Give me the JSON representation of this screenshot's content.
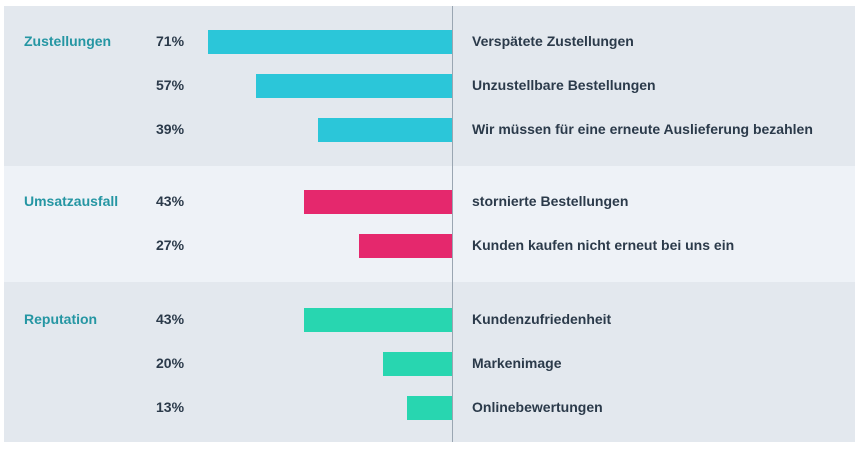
{
  "chart_data": {
    "type": "bar",
    "orientation": "horizontal",
    "groups": [
      {
        "name": "Zustellungen",
        "color": "#2bc6d9",
        "band_color": "#e3e8ee",
        "items": [
          {
            "label": "Verspätete Zustellungen",
            "value": 71,
            "value_text": "71%"
          },
          {
            "label": "Unzustellbare Bestellungen",
            "value": 57,
            "value_text": "57%"
          },
          {
            "label": "Wir müssen für eine erneute Auslieferung bezahlen",
            "value": 39,
            "value_text": "39%"
          }
        ]
      },
      {
        "name": "Umsatzausfall",
        "color": "#e5286d",
        "band_color": "#eef2f7",
        "items": [
          {
            "label": "stornierte Bestellungen",
            "value": 43,
            "value_text": "43%"
          },
          {
            "label": "Kunden kaufen nicht erneut bei uns ein",
            "value": 27,
            "value_text": "27%"
          }
        ]
      },
      {
        "name": "Reputation",
        "color": "#28d6b0",
        "band_color": "#e3e8ee",
        "items": [
          {
            "label": "Kundenzufriedenheit",
            "value": 43,
            "value_text": "43%"
          },
          {
            "label": "Markenimage",
            "value": 20,
            "value_text": "20%"
          },
          {
            "label": "Onlinebewertungen",
            "value": 13,
            "value_text": "13%"
          }
        ]
      }
    ],
    "xlim": [
      0,
      100
    ]
  }
}
